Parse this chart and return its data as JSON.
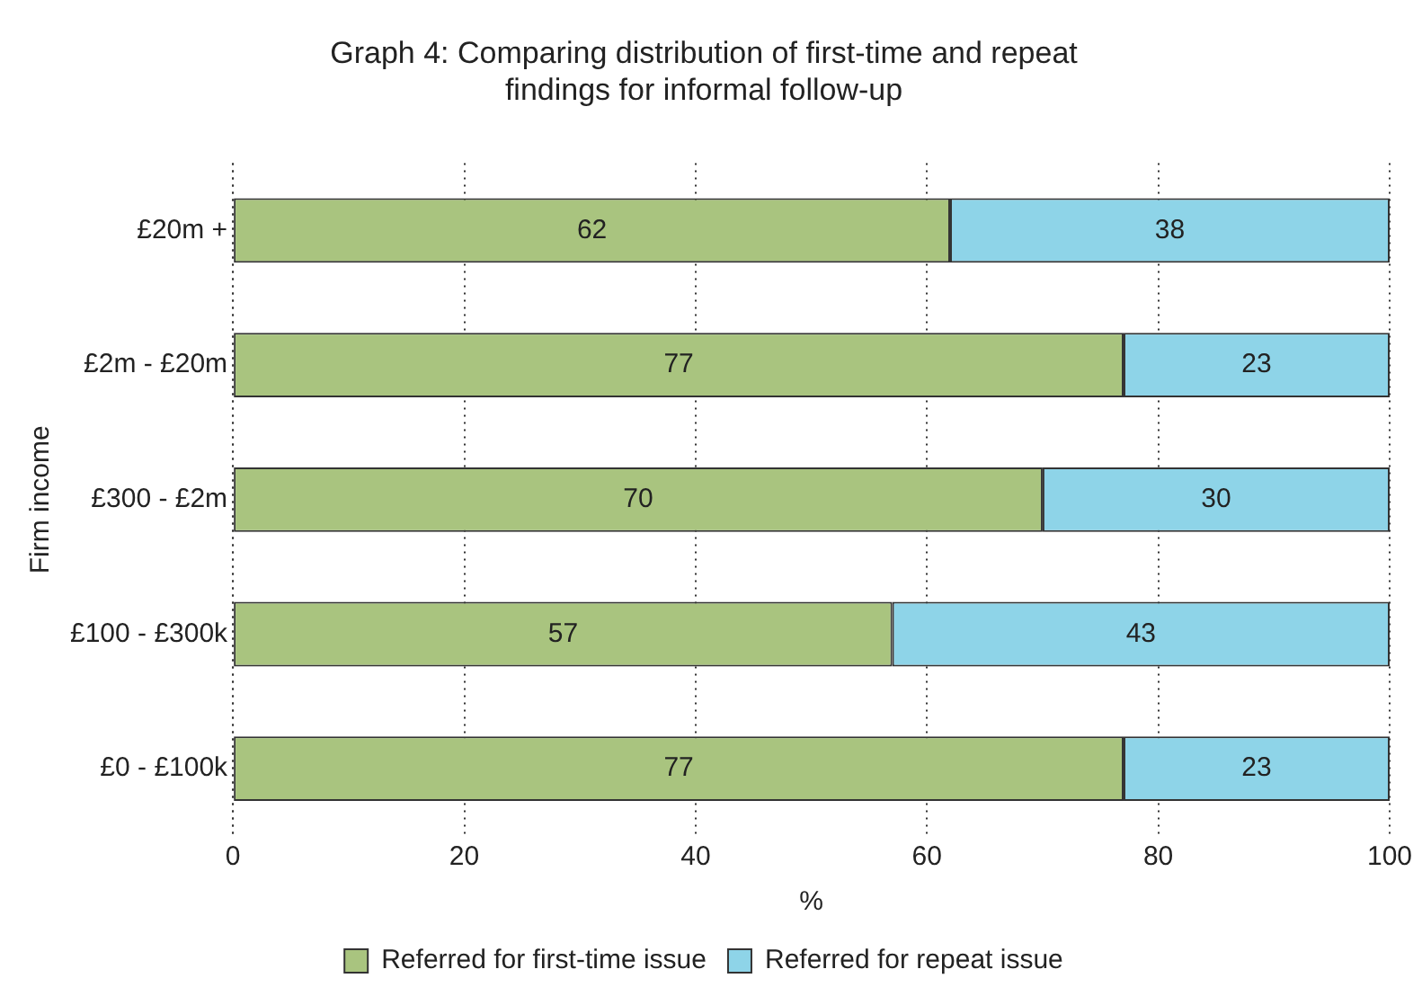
{
  "chart_data": {
    "type": "bar",
    "orientation": "horizontal",
    "stacked": true,
    "title": "Graph 4: Comparing distribution of first-time and repeat findings for informal follow-up",
    "xlabel": "%",
    "ylabel": "Firm income",
    "categories": [
      "£20m +",
      "£2m - £20m",
      "£300 - £2m",
      "£100 - £300k",
      "£0 - £100k"
    ],
    "series": [
      {
        "name": "Referred for first-time issue",
        "color": "#a9c47f",
        "values": [
          62,
          77,
          70,
          57,
          77
        ]
      },
      {
        "name": "Referred for repeat issue",
        "color": "#8ed4e8",
        "values": [
          38,
          23,
          30,
          43,
          23
        ]
      }
    ],
    "xlim": [
      0,
      100
    ],
    "xticks": [
      0,
      20,
      40,
      60,
      80,
      100
    ],
    "grid": "x",
    "legend": "bottom",
    "data_labels": true
  }
}
